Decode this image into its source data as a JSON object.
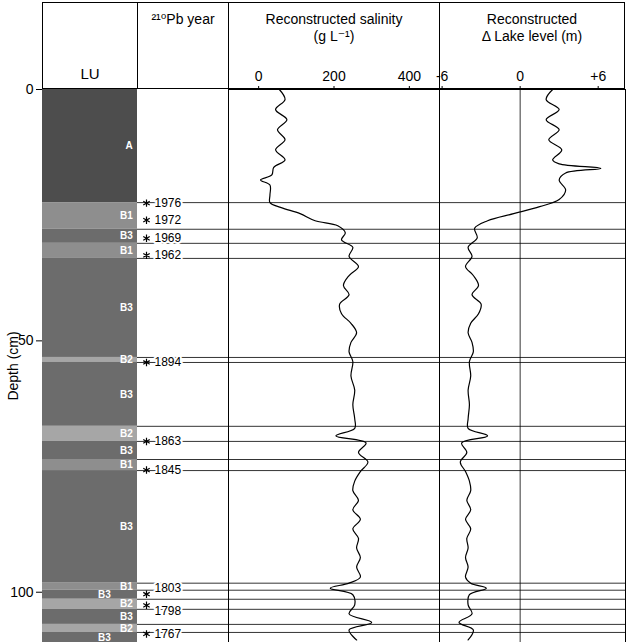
{
  "chart_data": {
    "type": "stratigraphic",
    "ylabel": "Depth (cm)",
    "ylim": [
      0,
      110
    ],
    "yticks": [
      0,
      50,
      100
    ],
    "panels": [
      {
        "type": "units",
        "title": "LU",
        "units": [
          {
            "label": "A",
            "top": 0,
            "bottom": 22.5
          },
          {
            "label": "B1",
            "top": 22.5,
            "bottom": 27.8
          },
          {
            "label": "B3",
            "top": 27.8,
            "bottom": 30.6
          },
          {
            "label": "B1",
            "top": 30.6,
            "bottom": 33.6
          },
          {
            "label": "B3",
            "top": 33.6,
            "bottom": 53.3
          },
          {
            "label": "B2",
            "top": 53.3,
            "bottom": 54.3
          },
          {
            "label": "B3",
            "top": 54.3,
            "bottom": 67
          },
          {
            "label": "B2",
            "top": 67,
            "bottom": 70
          },
          {
            "label": "B3",
            "top": 70,
            "bottom": 73.6
          },
          {
            "label": "B1",
            "top": 73.6,
            "bottom": 75.8
          },
          {
            "label": "B3",
            "top": 75.8,
            "bottom": 98.2
          },
          {
            "label": "B1",
            "top": 98.2,
            "bottom": 99.6
          },
          {
            "label": "B3",
            "top": 99.6,
            "bottom": 101.4
          },
          {
            "label": "B2",
            "top": 101.4,
            "bottom": 103.4
          },
          {
            "label": "B3",
            "top": 103.4,
            "bottom": 106.4
          },
          {
            "label": "B2",
            "top": 106.4,
            "bottom": 108
          },
          {
            "label": "B3",
            "top": 108,
            "bottom": 110
          }
        ]
      },
      {
        "type": "dates",
        "title": "²¹⁰Pb year",
        "marker": "asterisk",
        "depths": [
          22.6,
          26.0,
          29.6,
          33.0,
          54.3,
          70.0,
          75.7,
          100.4,
          102.6,
          108.3
        ],
        "labels": [
          1976,
          1972,
          1969,
          1962,
          1894,
          1863,
          1845,
          1803,
          1798,
          1767
        ]
      },
      {
        "type": "line",
        "title": "Reconstructed salinity (g L⁻¹)",
        "color": "#000000",
        "xlim": [
          -80,
          480
        ],
        "xticks": [
          0,
          200,
          400
        ],
        "depths": [
          0,
          2,
          4,
          6,
          8,
          10,
          12,
          14,
          15.5,
          17,
          18,
          19,
          21,
          22.5,
          23.5,
          24.7,
          26.1,
          27.1,
          28.5,
          29.9,
          31.4,
          33.2,
          35.2,
          37,
          39,
          40.8,
          42.7,
          44.6,
          46.5,
          48.4,
          50.3,
          52.2,
          54.1,
          57,
          59.8,
          62.7,
          65.5,
          67.4,
          68.9,
          70.3,
          72.2,
          74.1,
          76,
          77.9,
          79.8,
          81.7,
          83.6,
          85.5,
          87.4,
          89.3,
          91.2,
          93.1,
          95,
          97,
          98.2,
          99.2,
          100.5,
          102.5,
          104.3,
          106,
          107.5,
          109.5
        ],
        "values": [
          55,
          70,
          45,
          75,
          50,
          70,
          45,
          70,
          40,
          35,
          5,
          30,
          30,
          30,
          60,
          110,
          150,
          210,
          230,
          220,
          250,
          240,
          265,
          240,
          225,
          240,
          215,
          220,
          245,
          260,
          245,
          240,
          250,
          245,
          255,
          250,
          255,
          255,
          205,
          285,
          265,
          290,
          270,
          255,
          250,
          265,
          250,
          270,
          250,
          265,
          260,
          270,
          260,
          270,
          240,
          190,
          250,
          255,
          240,
          300,
          240,
          260
        ]
      },
      {
        "type": "line",
        "title": "Reconstructed Δ Lake level (m)",
        "color": "#000000",
        "xlim": [
          -6.2,
          8.1
        ],
        "xticks": [
          -6,
          0,
          {
            "value": 6,
            "label": "+6"
          }
        ],
        "depths": [
          0,
          2,
          4,
          6,
          8,
          10,
          12,
          14,
          14.8,
          15.7,
          16.6,
          18,
          20,
          21.9,
          23.3,
          24.7,
          26.1,
          27.6,
          29.5,
          31.4,
          33.2,
          35.2,
          37,
          39,
          40.8,
          42.7,
          44.6,
          46.5,
          48.4,
          50.3,
          52.2,
          54.1,
          57,
          59.8,
          62.7,
          65.5,
          67.4,
          68.9,
          70.3,
          72.2,
          74.1,
          76,
          77.9,
          79.8,
          81.7,
          83.6,
          85.5,
          87.4,
          89.3,
          91.2,
          93.1,
          95,
          97,
          98.2,
          99.2,
          100.5,
          102.5,
          104.3,
          106,
          107.5,
          109.5
        ],
        "values": [
          2.5,
          2.0,
          3.0,
          2.0,
          3.0,
          2.2,
          3.2,
          2.5,
          3.0,
          6.2,
          3.5,
          3.0,
          3.5,
          3.0,
          1.5,
          -0.5,
          -2.5,
          -3.5,
          -3.3,
          -4.0,
          -3.7,
          -4.2,
          -3.6,
          -3.2,
          -3.7,
          -3.0,
          -3.2,
          -3.8,
          -4.0,
          -3.7,
          -3.6,
          -3.9,
          -3.8,
          -4.0,
          -3.9,
          -4.0,
          -4.0,
          -2.5,
          -4.5,
          -4.1,
          -4.6,
          -4.2,
          -3.9,
          -3.8,
          -4.1,
          -3.8,
          -4.2,
          -3.8,
          -4.1,
          -4.0,
          -4.2,
          -4.0,
          -4.2,
          -3.8,
          -2.6,
          -3.9,
          -4.0,
          -3.7,
          -4.7,
          -3.6,
          -4.0
        ]
      }
    ]
  }
}
